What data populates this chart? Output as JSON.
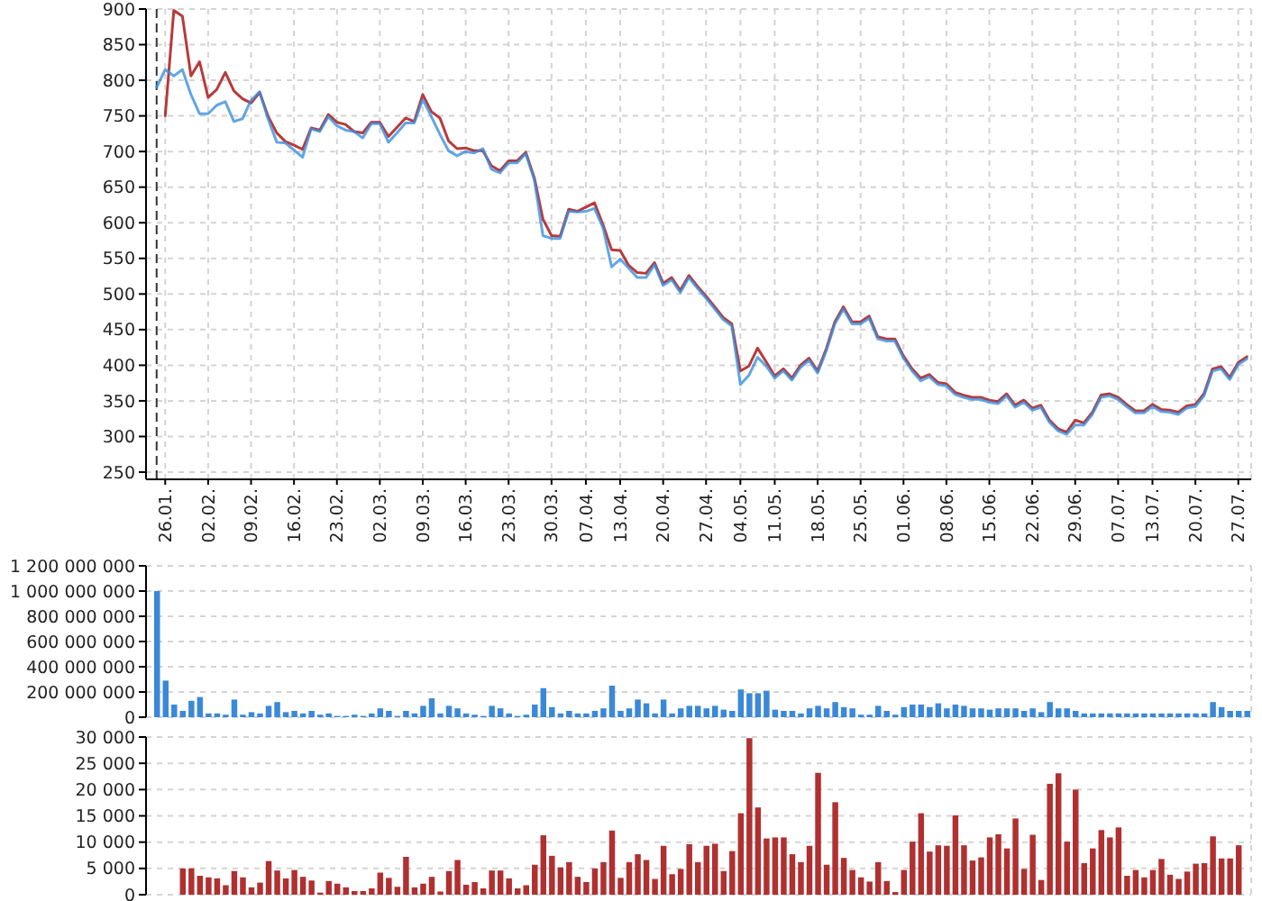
{
  "chart_data": [
    {
      "type": "line",
      "categories": [
        null,
        "26.01.",
        null,
        null,
        null,
        null,
        "02.02.",
        null,
        null,
        null,
        null,
        "09.02.",
        null,
        null,
        null,
        null,
        "16.02.",
        null,
        null,
        null,
        null,
        "23.02.",
        null,
        null,
        null,
        null,
        "02.03.",
        null,
        null,
        null,
        null,
        "09.03.",
        null,
        null,
        null,
        null,
        "16.03.",
        null,
        null,
        null,
        null,
        "23.03.",
        null,
        null,
        null,
        null,
        "30.03.",
        null,
        null,
        null,
        "07.04.",
        null,
        null,
        null,
        "13.04.",
        null,
        null,
        null,
        null,
        "20.04.",
        null,
        null,
        null,
        null,
        "27.04.",
        null,
        null,
        null,
        "04.05.",
        null,
        null,
        null,
        "11.05.",
        null,
        null,
        null,
        null,
        "18.05.",
        null,
        null,
        null,
        null,
        "25.05.",
        null,
        null,
        null,
        null,
        "01.06.",
        null,
        null,
        null,
        null,
        "08.06.",
        null,
        null,
        null,
        null,
        "15.06.",
        null,
        null,
        null,
        null,
        "22.06.",
        null,
        null,
        null,
        null,
        "29.06.",
        null,
        null,
        null,
        null,
        "07.07.",
        null,
        null,
        null,
        "13.07.",
        null,
        null,
        null,
        null,
        "20.07.",
        null,
        null,
        null,
        null,
        "27.07.",
        null
      ],
      "series": [
        {
          "color": "#b83a3a",
          "values": [
            null,
            750,
            898,
            890,
            806,
            826,
            776,
            787,
            811,
            785,
            774,
            768,
            783,
            749,
            726,
            714,
            709,
            703,
            733,
            730,
            752,
            741,
            738,
            728,
            726,
            741,
            741,
            721,
            734,
            747,
            742,
            780,
            756,
            747,
            715,
            704,
            705,
            701,
            701,
            680,
            673,
            687,
            687,
            699,
            663,
            605,
            582,
            581,
            619,
            616,
            622,
            628,
            597,
            562,
            561,
            540,
            530,
            529,
            544,
            515,
            523,
            505,
            526,
            511,
            497,
            482,
            467,
            458,
            392,
            399,
            424,
            405,
            385,
            395,
            382,
            400,
            410,
            392,
            423,
            461,
            482,
            461,
            461,
            469,
            440,
            437,
            437,
            413,
            395,
            382,
            387,
            376,
            374,
            362,
            358,
            355,
            355,
            351,
            349,
            360,
            344,
            351,
            340,
            344,
            323,
            311,
            306,
            323,
            319,
            334,
            358,
            360,
            355,
            345,
            336,
            336,
            345,
            338,
            337,
            334,
            343,
            345,
            360,
            395,
            398,
            383,
            404,
            412
          ]
        },
        {
          "color": "#3a8ee0",
          "values": [
            790,
            815,
            806,
            815,
            780,
            753,
            753,
            765,
            770,
            742,
            746,
            772,
            784,
            745,
            713,
            712,
            702,
            692,
            732,
            728,
            749,
            736,
            730,
            728,
            719,
            739,
            739,
            713,
            726,
            740,
            740,
            773,
            749,
            724,
            701,
            694,
            700,
            698,
            704,
            675,
            670,
            684,
            684,
            697,
            660,
            582,
            578,
            578,
            616,
            615,
            616,
            620,
            593,
            538,
            549,
            536,
            523,
            523,
            541,
            512,
            520,
            502,
            523,
            508,
            494,
            479,
            464,
            455,
            373,
            386,
            411,
            399,
            382,
            392,
            379,
            397,
            407,
            389,
            420,
            458,
            479,
            458,
            458,
            466,
            437,
            434,
            434,
            410,
            392,
            378,
            384,
            373,
            371,
            359,
            355,
            352,
            352,
            348,
            346,
            357,
            341,
            348,
            337,
            341,
            320,
            308,
            303,
            316,
            316,
            331,
            355,
            357,
            352,
            342,
            333,
            333,
            342,
            335,
            334,
            331,
            340,
            342,
            357,
            392,
            395,
            380,
            401,
            409
          ]
        }
      ],
      "ylim": [
        250,
        900
      ],
      "yticks": [
        250,
        300,
        350,
        400,
        450,
        500,
        550,
        600,
        650,
        700,
        750,
        800,
        850,
        900
      ],
      "grid": true
    },
    {
      "type": "bar",
      "categories": [
        null,
        "26.01.",
        null,
        null,
        null,
        null,
        "02.02.",
        null,
        null,
        null,
        null,
        "09.02.",
        null,
        null,
        null,
        null,
        "16.02.",
        null,
        null,
        null,
        null,
        "23.02.",
        null,
        null,
        null,
        null,
        "02.03.",
        null,
        null,
        null,
        null,
        "09.03.",
        null,
        null,
        null,
        null,
        "16.03.",
        null,
        null,
        null,
        null,
        "23.03.",
        null,
        null,
        null,
        null,
        "30.03.",
        null,
        null,
        null,
        "07.04.",
        null,
        null,
        null,
        "13.04.",
        null,
        null,
        null,
        null,
        "20.04.",
        null,
        null,
        null,
        null,
        "27.04.",
        null,
        null,
        null,
        "04.05.",
        null,
        null,
        null,
        "11.05.",
        null,
        null,
        null,
        null,
        "18.05.",
        null,
        null,
        null,
        null,
        "25.05.",
        null,
        null,
        null,
        null,
        "01.06.",
        null,
        null,
        null,
        null,
        "08.06.",
        null,
        null,
        null,
        null,
        "15.06.",
        null,
        null,
        null,
        null,
        "22.06.",
        null,
        null,
        null,
        null,
        "29.06.",
        null,
        null,
        null,
        null,
        "07.07.",
        null,
        null,
        null,
        "13.07.",
        null,
        null,
        null,
        null,
        "20.07.",
        null,
        null,
        null,
        null,
        "27.07.",
        null
      ],
      "values": [
        1000000000,
        290000000,
        100000000,
        50000000,
        130000000,
        160000000,
        30000000,
        30000000,
        20000000,
        140000000,
        20000000,
        40000000,
        30000000,
        90000000,
        120000000,
        40000000,
        50000000,
        30000000,
        50000000,
        20000000,
        30000000,
        10000000,
        10000000,
        20000000,
        10000000,
        30000000,
        70000000,
        50000000,
        10000000,
        50000000,
        30000000,
        90000000,
        150000000,
        30000000,
        90000000,
        70000000,
        30000000,
        20000000,
        10000000,
        90000000,
        70000000,
        30000000,
        10000000,
        20000000,
        100000000,
        230000000,
        80000000,
        30000000,
        50000000,
        30000000,
        30000000,
        50000000,
        70000000,
        250000000,
        50000000,
        70000000,
        140000000,
        110000000,
        30000000,
        140000000,
        30000000,
        70000000,
        90000000,
        90000000,
        70000000,
        90000000,
        60000000,
        50000000,
        220000000,
        190000000,
        190000000,
        210000000,
        60000000,
        50000000,
        50000000,
        30000000,
        70000000,
        90000000,
        70000000,
        120000000,
        80000000,
        70000000,
        20000000,
        20000000,
        90000000,
        50000000,
        20000000,
        80000000,
        100000000,
        100000000,
        80000000,
        110000000,
        70000000,
        100000000,
        90000000,
        70000000,
        70000000,
        60000000,
        70000000,
        70000000,
        70000000,
        50000000,
        70000000,
        40000000,
        120000000,
        70000000,
        70000000,
        50000000,
        30000000,
        30000000,
        30000000,
        30000000,
        30000000,
        30000000,
        30000000,
        30000000,
        30000000,
        30000000,
        30000000,
        30000000,
        30000000,
        30000000,
        30000000,
        120000000,
        80000000,
        50000000,
        50000000,
        50000000
      ],
      "color": "#3b88d8",
      "ylim": [
        0,
        1200000000
      ],
      "yticks": [
        {
          "value": 0,
          "label": "0"
        },
        {
          "value": 200000000,
          "label": "200 000 000"
        },
        {
          "value": 400000000,
          "label": "400 000 000"
        },
        {
          "value": 600000000,
          "label": "600 000 000"
        },
        {
          "value": 800000000,
          "label": "800 000 000"
        },
        {
          "value": 1000000000,
          "label": "1 000 000 000"
        },
        {
          "value": 1200000000,
          "label": "1 200 000 000"
        }
      ],
      "grid": true,
      "tick_labels": "y"
    },
    {
      "type": "bar",
      "categories": [
        null,
        "26.01.",
        null,
        null,
        null,
        null,
        "02.02.",
        null,
        null,
        null,
        null,
        "09.02.",
        null,
        null,
        null,
        null,
        "16.02.",
        null,
        null,
        null,
        null,
        "23.02.",
        null,
        null,
        null,
        null,
        "02.03.",
        null,
        null,
        null,
        null,
        "09.03.",
        null,
        null,
        null,
        null,
        "16.03.",
        null,
        null,
        null,
        null,
        "23.03.",
        null,
        null,
        null,
        null,
        "30.03.",
        null,
        null,
        null,
        "07.04.",
        null,
        null,
        null,
        "13.04.",
        null,
        null,
        null,
        null,
        "20.04.",
        null,
        null,
        null,
        null,
        "27.04.",
        null,
        null,
        null,
        "04.05.",
        null,
        null,
        null,
        "11.05.",
        null,
        null,
        null,
        null,
        "18.05.",
        null,
        null,
        null,
        null,
        "25.05.",
        null,
        null,
        null,
        null,
        "01.06.",
        null,
        null,
        null,
        null,
        "08.06.",
        null,
        null,
        null,
        null,
        "15.06.",
        null,
        null,
        null,
        null,
        "22.06.",
        null,
        null,
        null,
        null,
        "29.06.",
        null,
        null,
        null,
        null,
        "07.07.",
        null,
        null,
        null,
        "13.07.",
        null,
        null,
        null,
        null,
        "20.07.",
        null,
        null,
        null,
        null,
        "27.07.",
        null
      ],
      "values": [
        null,
        null,
        null,
        5000,
        5000,
        3600,
        3300,
        3100,
        1800,
        4500,
        3300,
        1400,
        2300,
        6400,
        4600,
        3100,
        4700,
        3400,
        2700,
        400,
        2600,
        2100,
        1400,
        700,
        700,
        1200,
        4200,
        3200,
        1500,
        7200,
        1400,
        2100,
        3400,
        600,
        4500,
        6600,
        1900,
        2400,
        1200,
        4600,
        4600,
        3100,
        1200,
        1800,
        5700,
        11300,
        7400,
        5200,
        6200,
        3400,
        2400,
        5000,
        6200,
        12200,
        3200,
        6200,
        7700,
        6600,
        3000,
        9300,
        3900,
        4900,
        9600,
        6200,
        9300,
        9700,
        4500,
        8300,
        15500,
        29800,
        16600,
        10700,
        10900,
        10900,
        7700,
        6200,
        9300,
        23200,
        5700,
        17600,
        7000,
        4700,
        3300,
        2500,
        6200,
        2600,
        500,
        4700,
        10100,
        15500,
        8200,
        9400,
        9300,
        15100,
        9400,
        6500,
        7100,
        10900,
        11500,
        8800,
        14500,
        4900,
        11400,
        2800,
        21100,
        23100,
        10100,
        20000,
        6000,
        8800,
        12300,
        10900,
        12800,
        3600,
        4700,
        3300,
        4700,
        6800,
        3800,
        3000,
        4400,
        5900,
        6000,
        11100,
        6900,
        6900,
        9400,
        null
      ],
      "color": "#b03030",
      "ylim": [
        0,
        30000
      ],
      "yticks": [
        {
          "value": 0,
          "label": "0"
        },
        {
          "value": 5000,
          "label": "5 000"
        },
        {
          "value": 10000,
          "label": "10 000"
        },
        {
          "value": 15000,
          "label": "15 000"
        },
        {
          "value": 20000,
          "label": "20 000"
        },
        {
          "value": 25000,
          "label": "25 000"
        },
        {
          "value": 30000,
          "label": "30 000"
        }
      ],
      "grid": true,
      "tick_labels": "y"
    }
  ]
}
